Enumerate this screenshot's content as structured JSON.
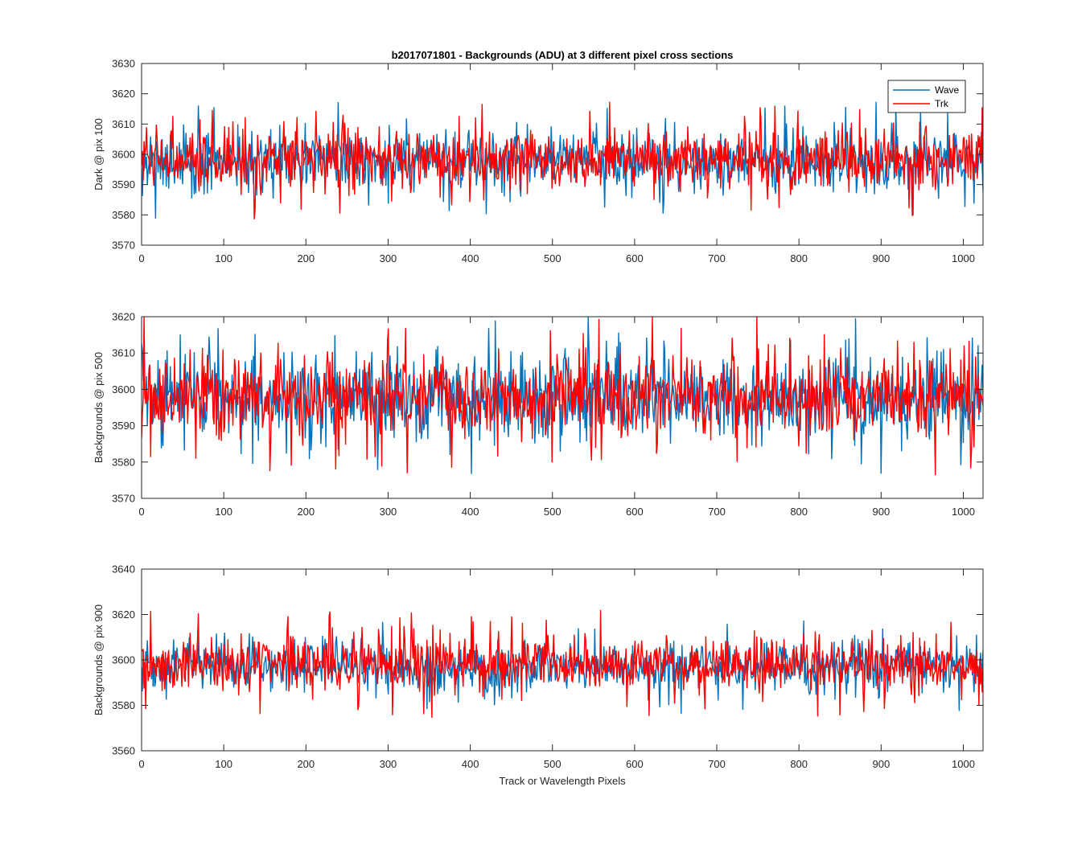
{
  "figure_title": "b2017071801 - Backgrounds (ADU) at 3 different pixel cross sections",
  "colors": {
    "wave": "#0072BD",
    "trk": "#FF0000",
    "axes": "#262626"
  },
  "chart_data": [
    {
      "type": "line",
      "title": "b2017071801 - Backgrounds (ADU) at 3 different pixel cross sections",
      "xlabel": "",
      "ylabel": "Dark @ pix 100",
      "xlim": [
        0,
        1024
      ],
      "ylim": [
        3570,
        3630
      ],
      "xticks": [
        0,
        100,
        200,
        300,
        400,
        500,
        600,
        700,
        800,
        900,
        1000
      ],
      "yticks": [
        3570,
        3580,
        3590,
        3600,
        3610,
        3620,
        3630
      ],
      "grid": false,
      "legend": {
        "placement": "top-right",
        "entries": [
          "Wave",
          "Trk"
        ]
      },
      "series": [
        {
          "name": "Wave",
          "color": "#0072BD",
          "n_points": 1024,
          "mean": 3598,
          "std": 6.5,
          "min": 3574,
          "max": 3618
        },
        {
          "name": "Trk",
          "color": "#FF0000",
          "n_points": 1024,
          "mean": 3598,
          "std": 6.5,
          "min": 3570,
          "max": 3627
        }
      ]
    },
    {
      "type": "line",
      "title": "",
      "xlabel": "",
      "ylabel": "Backgrounds @ pix 500",
      "xlim": [
        0,
        1024
      ],
      "ylim": [
        3570,
        3620
      ],
      "xticks": [
        0,
        100,
        200,
        300,
        400,
        500,
        600,
        700,
        800,
        900,
        1000
      ],
      "yticks": [
        3570,
        3580,
        3590,
        3600,
        3610,
        3620
      ],
      "grid": false,
      "series": [
        {
          "name": "Wave",
          "color": "#0072BD",
          "n_points": 1024,
          "mean": 3598,
          "std": 7.5,
          "min": 3576,
          "max": 3620
        },
        {
          "name": "Trk",
          "color": "#FF0000",
          "n_points": 1024,
          "mean": 3598,
          "std": 7.5,
          "min": 3570,
          "max": 3620
        }
      ]
    },
    {
      "type": "line",
      "title": "",
      "xlabel": "Track or Wavelength Pixels",
      "ylabel": "Backgrounds @ pix 900",
      "xlim": [
        0,
        1024
      ],
      "ylim": [
        3560,
        3640
      ],
      "xticks": [
        0,
        100,
        200,
        300,
        400,
        500,
        600,
        700,
        800,
        900,
        1000
      ],
      "yticks": [
        3560,
        3580,
        3600,
        3620,
        3640
      ],
      "grid": false,
      "series": [
        {
          "name": "Wave",
          "color": "#0072BD",
          "n_points": 1024,
          "mean": 3597,
          "std": 7,
          "min": 3573,
          "max": 3622
        },
        {
          "name": "Trk",
          "color": "#FF0000",
          "n_points": 1024,
          "mean": 3598,
          "std": 8,
          "min": 3569,
          "max": 3626
        }
      ]
    }
  ]
}
